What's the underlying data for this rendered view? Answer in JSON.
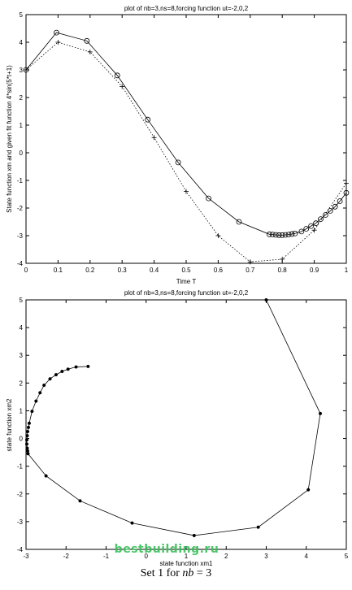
{
  "chart_data": [
    {
      "type": "line",
      "title": "plot of nb=3,ns=8,forcing function ut=-2,0,2",
      "xlabel": "Time T",
      "ylabel": "State function xm and given fit function 4*sin(5*t+1)",
      "xlim": [
        0,
        1
      ],
      "ylim": [
        -4,
        5
      ],
      "xticks": [
        "0",
        "0.1",
        "0.2",
        "0.3",
        "0.4",
        "0.5",
        "0.6",
        "0.7",
        "0.8",
        "0.9",
        "1"
      ],
      "yticks": [
        "-4",
        "-3",
        "-2",
        "-1",
        "0",
        "1",
        "2",
        "3",
        "4",
        "5"
      ],
      "grid": false,
      "series": [
        {
          "marker": "circle",
          "style": "solid",
          "x": [
            0,
            0.095,
            0.19,
            0.285,
            0.38,
            0.475,
            0.57,
            0.665,
            0.76,
            0.77,
            0.78,
            0.79,
            0.8,
            0.81,
            0.82,
            0.83,
            0.84,
            0.86,
            0.875,
            0.89,
            0.905,
            0.92,
            0.935,
            0.95,
            0.965,
            0.98,
            1.0
          ],
          "y": [
            3.0,
            4.35,
            4.05,
            2.8,
            1.2,
            -0.35,
            -1.65,
            -2.5,
            -2.95,
            -2.96,
            -2.97,
            -2.98,
            -2.98,
            -2.97,
            -2.96,
            -2.94,
            -2.92,
            -2.85,
            -2.75,
            -2.65,
            -2.55,
            -2.4,
            -2.25,
            -2.1,
            -1.95,
            -1.75,
            -1.45
          ]
        },
        {
          "marker": "plus",
          "style": "dotted",
          "x": [
            0,
            0.1,
            0.2,
            0.3,
            0.4,
            0.5,
            0.6,
            0.7,
            0.8,
            0.9,
            1.0
          ],
          "y": [
            3.0,
            4.0,
            3.65,
            2.4,
            0.55,
            -1.4,
            -3.0,
            -3.95,
            -3.85,
            -2.8,
            -1.1
          ]
        }
      ]
    },
    {
      "type": "line",
      "title": "plot of nb=3,ns=8,forcing function ut=-2,0,2",
      "xlabel": "state function xm1",
      "ylabel": "state function xm2",
      "xlim": [
        -3,
        5
      ],
      "ylim": [
        -4,
        5
      ],
      "xticks": [
        "-3",
        "-2",
        "-1",
        "0",
        "1",
        "2",
        "3",
        "4",
        "5"
      ],
      "yticks": [
        "-4",
        "-3",
        "-2",
        "-1",
        "0",
        "1",
        "2",
        "3",
        "4",
        "5"
      ],
      "grid": false,
      "series": [
        {
          "marker": "dot",
          "style": "solid",
          "x": [
            3.0,
            4.35,
            4.05,
            2.8,
            1.2,
            -0.35,
            -1.65,
            -2.5,
            -2.95,
            -2.96,
            -2.97,
            -2.98,
            -2.98,
            -2.97,
            -2.96,
            -2.94,
            -2.92,
            -2.85,
            -2.75,
            -2.65,
            -2.55,
            -2.4,
            -2.25,
            -2.1,
            -1.95,
            -1.75,
            -1.45
          ],
          "y": [
            5.0,
            0.9,
            -1.85,
            -3.2,
            -3.5,
            -3.05,
            -2.25,
            -1.35,
            -0.55,
            -0.45,
            -0.35,
            -0.2,
            -0.05,
            0.1,
            0.25,
            0.4,
            0.55,
            0.98,
            1.35,
            1.65,
            1.92,
            2.15,
            2.3,
            2.42,
            2.5,
            2.58,
            2.6
          ]
        }
      ]
    }
  ],
  "caption": {
    "prefix": "Set 1 for ",
    "nb": "nb",
    "suffix": " = 3"
  },
  "watermark": "bestbuilding.ru"
}
